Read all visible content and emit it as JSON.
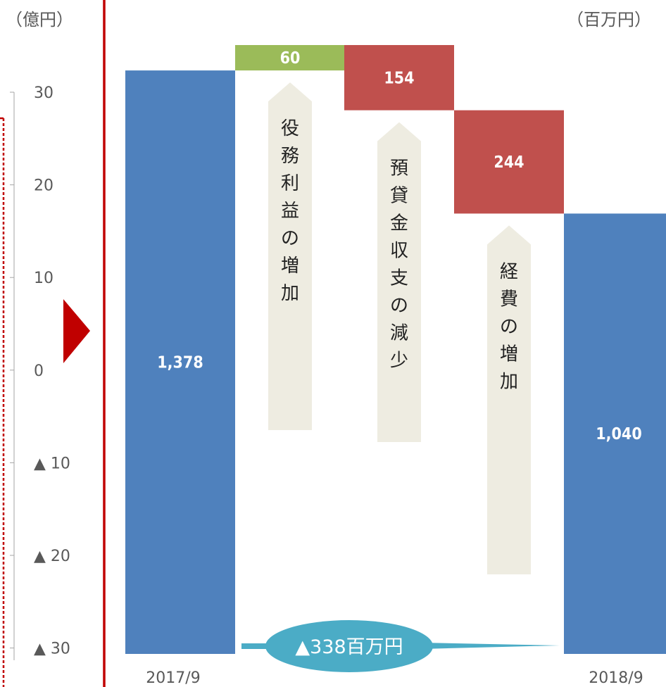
{
  "units": {
    "left": "（億円）",
    "right": "（百万円）"
  },
  "left_axis": {
    "ticks": [
      "30",
      "20",
      "10",
      "0",
      "▲ 10",
      "▲ 20",
      "▲ 30"
    ]
  },
  "colors": {
    "total_bar": "#4f81bd",
    "increase_bar": "#9bbb59",
    "decrease_bar": "#c0504d",
    "frame_red": "#c00000",
    "factor_arrow": "#eeece1",
    "total_change": "#4bacc6"
  },
  "chart_data": {
    "type": "bar",
    "subtype": "waterfall",
    "unit": "百万円",
    "categories": [
      "2017/9",
      "役務利益の増加",
      "預貸金収支の減少",
      "経費の増加",
      "2018/9"
    ],
    "steps": [
      {
        "kind": "total",
        "category": "2017/9",
        "value": 1378,
        "label": "1,378"
      },
      {
        "kind": "increase",
        "category": "役務利益の増加",
        "value": 60,
        "label": "60",
        "description": "役務利益の増加"
      },
      {
        "kind": "decrease",
        "category": "預貸金収支の減少",
        "value": -154,
        "label": "154",
        "description": "預貸金収支の減少"
      },
      {
        "kind": "decrease",
        "category": "経費の増加",
        "value": -244,
        "label": "244",
        "description": "経費の増加"
      },
      {
        "kind": "total",
        "category": "2018/9",
        "value": 1040,
        "label": "1,040"
      }
    ],
    "x_labels": [
      "2017/9",
      "2018/9"
    ],
    "total_change_label": "▲338百万円",
    "ylim": [
      0,
      1438
    ]
  }
}
